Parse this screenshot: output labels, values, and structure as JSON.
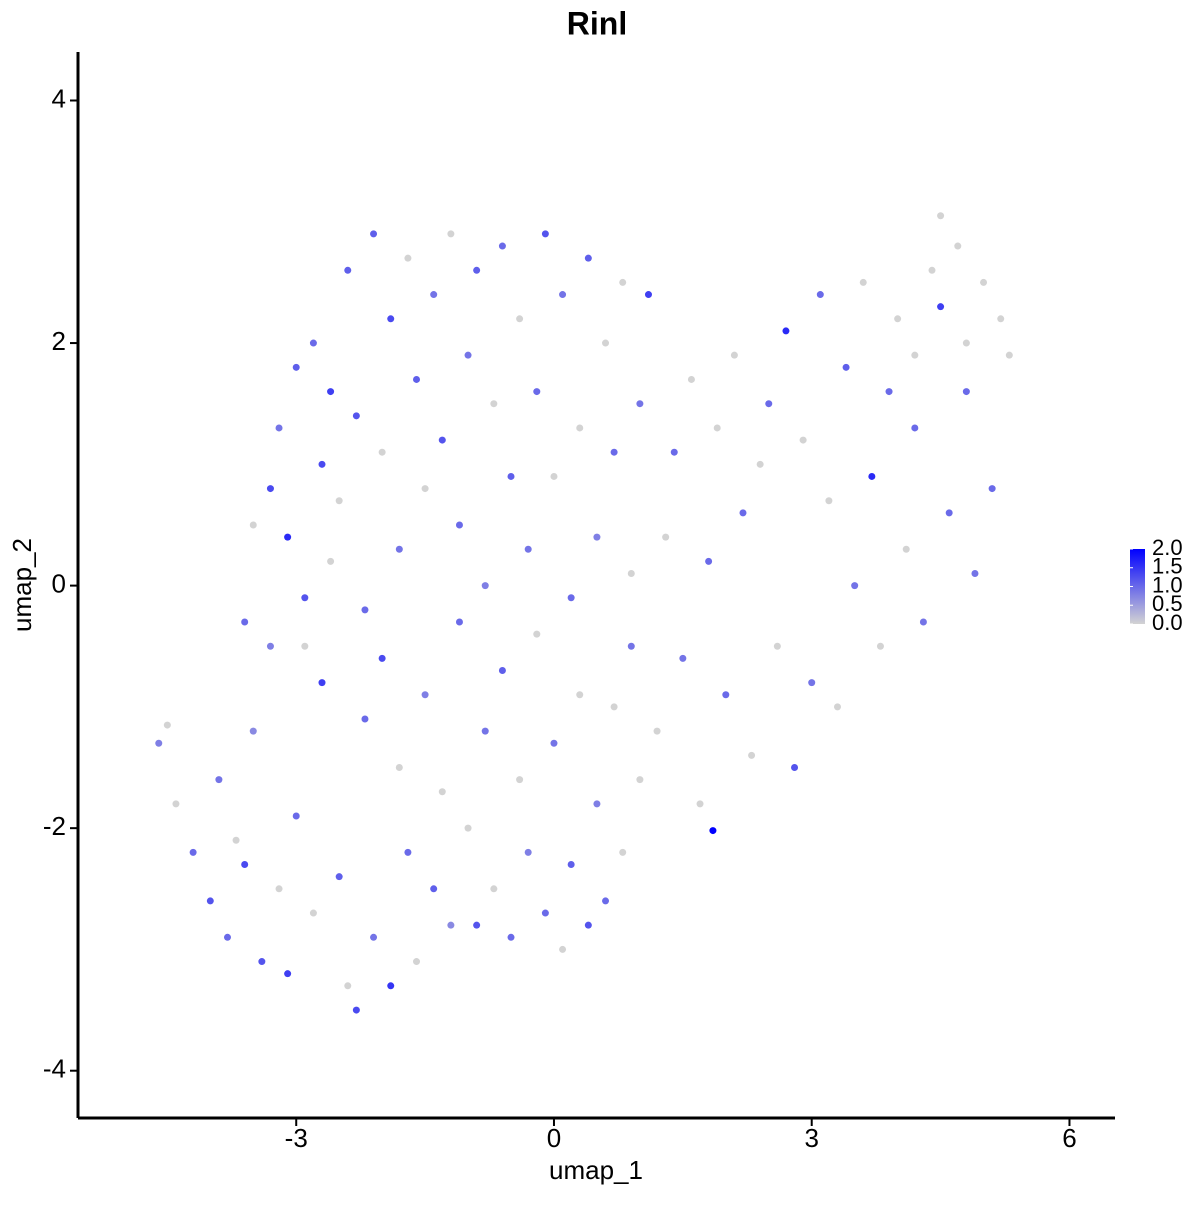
{
  "chart_data": {
    "type": "scatter",
    "title": "Rinl",
    "x_label": "umap_1",
    "y_label": "umap_2",
    "xlim": [
      -5.54,
      6.53
    ],
    "ylim": [
      -4.39,
      4.4
    ],
    "xticks": [
      -3,
      0,
      3,
      6
    ],
    "yticks": [
      -4,
      -2,
      0,
      2,
      4
    ],
    "color_low": "#d3d3d3",
    "color_high": "#0000ff",
    "color_lim": [
      0,
      2
    ],
    "color_ticks": [
      {
        "value": 0,
        "label": "0.0"
      },
      {
        "value": 0.5,
        "label": "0.5"
      },
      {
        "value": 1,
        "label": "1.0"
      },
      {
        "value": 1.5,
        "label": "1.5"
      },
      {
        "value": 2,
        "label": "2.0"
      }
    ],
    "x": [
      -4.6,
      -4.5,
      -4.4,
      -4.2,
      -4.0,
      -3.9,
      -3.8,
      -3.7,
      -3.6,
      -3.5,
      -3.4,
      -3.3,
      -3.2,
      -3.1,
      -3.0,
      -2.9,
      -2.8,
      -2.7,
      -2.6,
      -2.5,
      -2.4,
      -2.3,
      -2.2,
      -2.1,
      -2.0,
      -1.9,
      -1.8,
      -1.7,
      -1.6,
      -1.5,
      -1.4,
      -1.3,
      -1.2,
      -1.1,
      -1.0,
      -0.9,
      -0.8,
      -0.7,
      -0.6,
      -0.5,
      -0.4,
      -0.3,
      -0.2,
      -0.1,
      0.0,
      0.1,
      0.2,
      0.3,
      0.4,
      0.5,
      0.6,
      0.7,
      0.8,
      0.9,
      1.0,
      -3.6,
      -3.5,
      -3.3,
      -3.2,
      -3.1,
      -3.0,
      -2.9,
      -2.8,
      -2.7,
      -2.6,
      -2.5,
      -2.4,
      -2.3,
      -2.2,
      -2.1,
      -2.0,
      -1.9,
      -1.8,
      -1.7,
      -1.6,
      -1.5,
      -1.4,
      -1.3,
      -1.2,
      -1.1,
      -1.0,
      -0.9,
      -0.8,
      -0.7,
      -0.6,
      -0.5,
      -0.4,
      -0.3,
      -0.2,
      -0.1,
      0.0,
      0.1,
      0.2,
      0.3,
      0.4,
      0.5,
      0.6,
      0.7,
      0.8,
      0.9,
      1.0,
      1.1,
      1.2,
      1.3,
      1.4,
      1.5,
      1.6,
      1.7,
      1.8,
      1.85,
      1.9,
      2.0,
      2.1,
      2.2,
      2.3,
      2.4,
      2.5,
      2.6,
      2.7,
      2.8,
      2.9,
      3.0,
      3.1,
      3.2,
      3.3,
      3.4,
      3.5,
      3.6,
      3.7,
      3.8,
      3.9,
      4.0,
      4.1,
      4.2,
      4.3,
      4.4,
      4.5,
      4.5,
      4.6,
      4.7,
      4.8,
      4.9,
      5.0,
      5.1,
      5.2,
      5.3,
      4.8,
      4.2
    ],
    "y": [
      -1.3,
      -1.15,
      -1.8,
      -2.2,
      -2.6,
      -1.6,
      -2.9,
      -2.1,
      -2.3,
      -1.2,
      -3.1,
      -0.5,
      -2.5,
      -3.2,
      -1.9,
      -0.1,
      -2.7,
      -0.8,
      0.2,
      -2.4,
      -3.3,
      -3.5,
      -1.1,
      -2.9,
      -0.6,
      -3.3,
      -1.5,
      -2.2,
      -3.1,
      -0.9,
      -2.5,
      -1.7,
      -2.8,
      -0.3,
      -2.0,
      -2.8,
      -1.2,
      -2.5,
      -0.7,
      -2.9,
      -1.6,
      -2.2,
      -0.4,
      -2.7,
      -1.3,
      -3.0,
      -2.3,
      -0.9,
      -2.8,
      -1.8,
      -2.6,
      -1.0,
      -2.2,
      -0.5,
      -1.6,
      -0.3,
      0.5,
      0.8,
      1.3,
      0.4,
      1.8,
      -0.5,
      2.0,
      1.0,
      1.6,
      0.7,
      2.6,
      1.4,
      -0.2,
      2.9,
      1.1,
      2.2,
      0.3,
      2.7,
      1.7,
      0.8,
      2.4,
      1.2,
      2.9,
      0.5,
      1.9,
      2.6,
      0.0,
      1.5,
      2.8,
      0.9,
      2.2,
      0.3,
      1.6,
      2.9,
      0.9,
      2.4,
      -0.1,
      1.3,
      2.7,
      0.4,
      2.0,
      1.1,
      2.5,
      0.1,
      1.5,
      2.4,
      -1.2,
      0.4,
      1.1,
      -0.6,
      1.7,
      -1.8,
      0.2,
      -2.02,
      1.3,
      -0.9,
      1.9,
      0.6,
      -1.4,
      1.0,
      1.5,
      -0.5,
      2.1,
      -1.5,
      1.2,
      -0.8,
      2.4,
      0.7,
      -1.0,
      1.8,
      0.0,
      2.5,
      0.9,
      -0.5,
      1.6,
      2.2,
      0.3,
      1.3,
      -0.3,
      2.6,
      2.3,
      3.05,
      0.6,
      2.8,
      1.6,
      0.1,
      2.5,
      0.8,
      2.2,
      1.9,
      2.0,
      1.9
    ],
    "values": [
      0.8,
      0,
      0,
      1.0,
      1.2,
      0.9,
      1.0,
      0,
      1.3,
      0.7,
      1.2,
      0.8,
      0,
      1.4,
      1.0,
      1.2,
      0,
      1.4,
      0,
      1.1,
      0,
      1.3,
      1.0,
      0.9,
      1.3,
      1.5,
      0,
      1.0,
      0,
      0.8,
      1.1,
      0,
      0.7,
      1.0,
      0,
      1.2,
      0.9,
      0,
      1.1,
      1.0,
      0,
      0.8,
      0,
      1.0,
      0.9,
      0,
      1.1,
      0,
      1.2,
      0.8,
      1.0,
      0,
      0,
      0.9,
      0,
      1.0,
      0,
      1.3,
      0.9,
      1.6,
      1.1,
      0,
      1.0,
      1.3,
      1.4,
      0,
      1.1,
      1.2,
      1.0,
      1.1,
      0,
      1.3,
      0.9,
      0,
      1.1,
      0,
      0.9,
      1.2,
      0,
      1.0,
      0.9,
      1.1,
      0.8,
      0,
      1.0,
      1.1,
      0,
      0.9,
      1.0,
      1.2,
      0,
      0.9,
      1.0,
      0,
      1.1,
      0.8,
      0,
      1.0,
      0,
      0,
      0.9,
      1.4,
      0,
      0,
      1.0,
      0.9,
      0,
      0,
      1.0,
      2.0,
      0,
      1.0,
      0,
      1.0,
      0,
      0,
      1.0,
      0,
      1.6,
      1.2,
      0,
      0.9,
      1.0,
      0,
      0,
      1.1,
      0.9,
      0,
      1.6,
      0,
      1.0,
      0,
      0,
      1.0,
      0.9,
      0,
      1.4,
      0,
      1.0,
      0,
      1.0,
      0.9,
      0,
      1.0,
      0,
      0,
      0,
      0
    ]
  }
}
